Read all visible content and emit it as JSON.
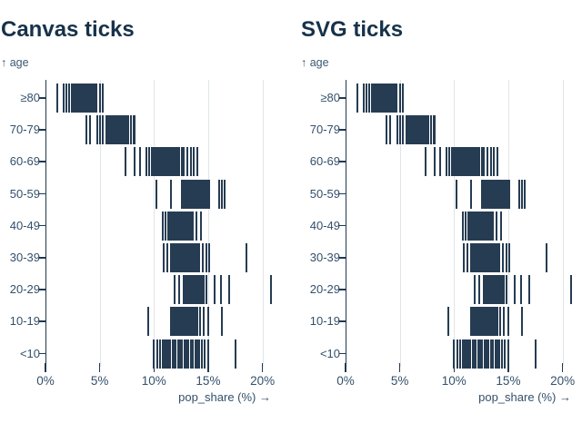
{
  "chart_data": {
    "type": "strip",
    "title": "",
    "panels": [
      {
        "title": "Canvas ticks"
      },
      {
        "title": "SVG ticks"
      }
    ],
    "y_axis_label": "↑ age",
    "x_axis_label": "pop_share (%) →",
    "xlabel": "pop_share (%)",
    "ylabel": "age",
    "xlim": [
      0,
      21
    ],
    "x_ticks": [
      "0%",
      "5%",
      "10%",
      "15%",
      "20%"
    ],
    "x_tick_values": [
      0,
      5,
      10,
      15,
      20
    ],
    "gridline_values": [
      5,
      10,
      15,
      20
    ],
    "categories": [
      "≥80",
      "70-79",
      "60-69",
      "50-59",
      "40-49",
      "30-39",
      "20-29",
      "10-19",
      "<10"
    ],
    "series": [
      {
        "name": "≥80",
        "values": [
          1.05,
          1.7,
          1.95,
          2.2,
          2.45,
          2.55,
          2.65,
          2.75,
          2.85,
          2.95,
          3.05,
          3.15,
          3.25,
          3.4,
          3.5,
          3.6,
          3.7,
          3.8,
          3.9,
          4.0,
          4.1,
          4.2,
          4.3,
          4.4,
          4.5,
          4.6,
          4.7,
          5.0,
          5.3
        ]
      },
      {
        "name": "70-79",
        "values": [
          3.8,
          4.1,
          4.75,
          5.05,
          5.32,
          5.6,
          5.75,
          5.95,
          6.05,
          6.15,
          6.25,
          6.35,
          6.45,
          6.55,
          6.65,
          6.75,
          6.85,
          6.95,
          7.05,
          7.15,
          7.25,
          7.35,
          7.45,
          7.55,
          7.65,
          7.85,
          8.1,
          8.25
        ]
      },
      {
        "name": "60-69",
        "values": [
          7.4,
          8.25,
          8.75,
          9.3,
          9.55,
          9.8,
          9.9,
          10.0,
          10.1,
          10.2,
          10.3,
          10.4,
          10.5,
          10.6,
          10.7,
          10.8,
          10.9,
          11.0,
          11.1,
          11.2,
          11.3,
          11.4,
          11.5,
          11.6,
          11.7,
          11.8,
          11.9,
          12.0,
          12.1,
          12.2,
          12.3,
          12.55,
          12.75,
          13.1,
          13.4,
          13.7,
          14.0
        ]
      },
      {
        "name": "50-59",
        "values": [
          10.2,
          11.6,
          12.55,
          12.7,
          12.85,
          13.0,
          13.15,
          13.3,
          13.45,
          13.6,
          13.75,
          13.9,
          14.05,
          14.2,
          14.35,
          14.5,
          14.65,
          14.8,
          14.95,
          15.1,
          16.05,
          16.3,
          16.5
        ]
      },
      {
        "name": "40-49",
        "values": [
          10.8,
          11.05,
          11.35,
          11.5,
          11.65,
          11.8,
          11.95,
          12.1,
          12.25,
          12.4,
          12.55,
          12.7,
          12.85,
          13.0,
          13.15,
          13.3,
          13.45,
          13.6,
          13.9,
          14.3
        ]
      },
      {
        "name": "30-39",
        "values": [
          10.9,
          11.2,
          11.6,
          11.75,
          11.9,
          12.05,
          12.2,
          12.35,
          12.5,
          12.65,
          12.8,
          12.95,
          13.1,
          13.25,
          13.4,
          13.55,
          13.7,
          13.85,
          14.0,
          14.15,
          14.5,
          14.8,
          15.1,
          18.5
        ]
      },
      {
        "name": "20-29",
        "values": [
          11.9,
          12.3,
          12.75,
          12.9,
          13.05,
          13.2,
          13.35,
          13.5,
          13.65,
          13.8,
          13.95,
          14.1,
          14.25,
          14.4,
          14.55,
          14.85,
          15.6,
          16.2,
          16.9,
          20.75
        ]
      },
      {
        "name": "10-19",
        "values": [
          9.5,
          11.6,
          11.75,
          11.9,
          12.05,
          12.2,
          12.35,
          12.5,
          12.65,
          12.8,
          12.95,
          13.1,
          13.25,
          13.4,
          13.55,
          13.7,
          13.85,
          14.0,
          14.25,
          14.55,
          15.0,
          16.25
        ]
      },
      {
        "name": "<10",
        "values": [
          10.0,
          10.3,
          10.6,
          10.8,
          11.0,
          11.15,
          11.3,
          11.5,
          11.7,
          11.85,
          12.0,
          12.2,
          12.4,
          12.6,
          12.8,
          13.0,
          13.2,
          13.4,
          13.6,
          13.8,
          14.0,
          14.2,
          14.45,
          14.7,
          15.0,
          17.5
        ]
      }
    ],
    "colors": {
      "tick": "#263c52",
      "axis": "#223950",
      "grid": "#e1e4e6",
      "title_text": "#17324a",
      "label_text": "#33506b"
    },
    "legend": "none",
    "grid": "vertical-only"
  }
}
